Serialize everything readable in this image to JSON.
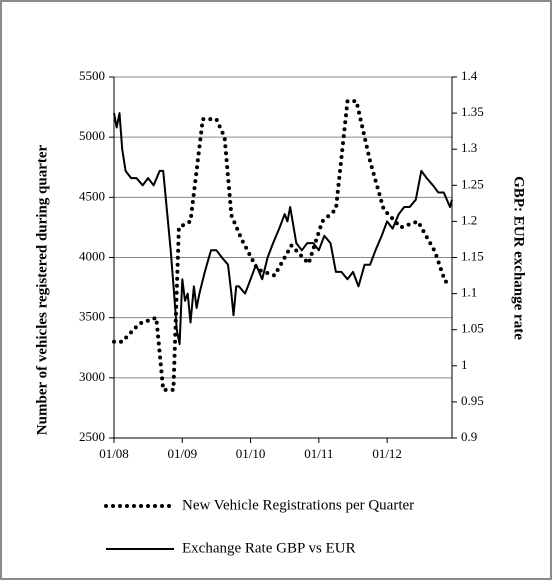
{
  "chart_data": {
    "type": "line",
    "y_label": "Number of vehicles registered during quarter",
    "y2_label": "GBP: EUR exchange rate",
    "xlim": [
      2008,
      2012.95
    ],
    "xticks": [
      {
        "value": 2008,
        "label": "01/08"
      },
      {
        "value": 2009,
        "label": "01/09"
      },
      {
        "value": 2010,
        "label": "01/10"
      },
      {
        "value": 2011,
        "label": "01/11"
      },
      {
        "value": 2012,
        "label": "01/12"
      }
    ],
    "ylim": [
      2500,
      5500
    ],
    "yticks": [
      2500,
      3000,
      3500,
      4000,
      4500,
      5000,
      5500
    ],
    "y2lim": [
      0.9,
      1.4
    ],
    "y2ticks": [
      0.9,
      0.95,
      1,
      1.05,
      1.1,
      1.15,
      1.2,
      1.25,
      1.3,
      1.35,
      1.4
    ],
    "grid": true,
    "series": [
      {
        "name": "New Vehicle Registrations per Quarter",
        "color": "#000000",
        "line_style": "dotted",
        "x": [
          2008.0,
          2008.12,
          2008.37,
          2008.62,
          2008.72,
          2008.87,
          2008.95,
          2009.12,
          2009.3,
          2009.5,
          2009.62,
          2009.72,
          2009.87,
          2010.1,
          2010.35,
          2010.6,
          2010.85,
          2011.05,
          2011.25,
          2011.42,
          2011.55,
          2011.75,
          2011.95,
          2012.2,
          2012.45,
          2012.7,
          2012.85,
          2012.95
        ],
        "values": [
          3300,
          3300,
          3450,
          3500,
          2900,
          2900,
          4250,
          4300,
          5150,
          5150,
          5000,
          4350,
          4150,
          3900,
          3850,
          4100,
          3950,
          4300,
          4400,
          5300,
          5300,
          4800,
          4400,
          4250,
          4300,
          4050,
          3800,
          3800
        ]
      },
      {
        "name": "Exchange Rate GBP vs EUR",
        "color": "#000000",
        "line_style": "solid",
        "axis": "y2",
        "x": [
          2008.0,
          2008.04,
          2008.08,
          2008.12,
          2008.17,
          2008.25,
          2008.33,
          2008.42,
          2008.5,
          2008.58,
          2008.67,
          2008.72,
          2008.77,
          2008.83,
          2008.88,
          2008.92,
          2008.96,
          2009.0,
          2009.04,
          2009.08,
          2009.12,
          2009.17,
          2009.21,
          2009.25,
          2009.33,
          2009.42,
          2009.5,
          2009.58,
          2009.67,
          2009.72,
          2009.75,
          2009.79,
          2009.83,
          2009.92,
          2010.0,
          2010.08,
          2010.17,
          2010.25,
          2010.33,
          2010.42,
          2010.5,
          2010.54,
          2010.58,
          2010.67,
          2010.75,
          2010.83,
          2010.92,
          2011.0,
          2011.08,
          2011.17,
          2011.25,
          2011.33,
          2011.42,
          2011.5,
          2011.58,
          2011.67,
          2011.75,
          2011.83,
          2011.92,
          2012.0,
          2012.08,
          2012.17,
          2012.25,
          2012.33,
          2012.42,
          2012.5,
          2012.58,
          2012.67,
          2012.75,
          2012.83,
          2012.92,
          2012.95
        ],
        "values": [
          1.35,
          1.33,
          1.35,
          1.3,
          1.27,
          1.26,
          1.26,
          1.25,
          1.26,
          1.25,
          1.27,
          1.27,
          1.22,
          1.16,
          1.1,
          1.05,
          1.03,
          1.12,
          1.09,
          1.1,
          1.06,
          1.11,
          1.08,
          1.1,
          1.13,
          1.16,
          1.16,
          1.15,
          1.14,
          1.1,
          1.07,
          1.11,
          1.11,
          1.1,
          1.12,
          1.14,
          1.12,
          1.15,
          1.17,
          1.19,
          1.21,
          1.2,
          1.22,
          1.17,
          1.16,
          1.17,
          1.17,
          1.16,
          1.18,
          1.17,
          1.13,
          1.13,
          1.12,
          1.13,
          1.11,
          1.14,
          1.14,
          1.16,
          1.18,
          1.2,
          1.19,
          1.21,
          1.22,
          1.22,
          1.23,
          1.27,
          1.26,
          1.25,
          1.24,
          1.24,
          1.22,
          1.23
        ]
      }
    ]
  }
}
